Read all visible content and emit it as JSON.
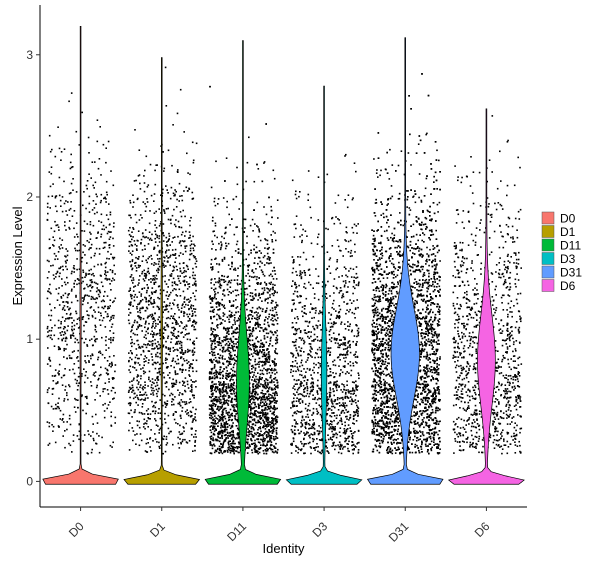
{
  "chart_data": {
    "type": "violin",
    "title": "",
    "xlabel": "Identity",
    "ylabel": "Expression Level",
    "ylim": [
      -0.18,
      3.35
    ],
    "yticks": [
      0,
      1,
      2,
      3
    ],
    "grid": false,
    "legend_position": "right",
    "jitter_points": true,
    "categories": [
      "D0",
      "D1",
      "D11",
      "D3",
      "D31",
      "D6"
    ],
    "series": [
      {
        "name": "D0",
        "color": "#F8766D",
        "max": 3.2,
        "zero_fraction": 0.97,
        "nonzero_median": 1.2,
        "point_count": 900
      },
      {
        "name": "D1",
        "color": "#B79F00",
        "max": 2.98,
        "zero_fraction": 0.95,
        "nonzero_median": 1.1,
        "point_count": 1500
      },
      {
        "name": "D11",
        "color": "#00BA38",
        "max": 3.1,
        "zero_fraction": 0.55,
        "nonzero_median": 0.7,
        "point_count": 3000
      },
      {
        "name": "D3",
        "color": "#00BFC4",
        "max": 2.78,
        "zero_fraction": 0.75,
        "nonzero_median": 0.75,
        "point_count": 1300
      },
      {
        "name": "D31",
        "color": "#619CFF",
        "max": 3.12,
        "zero_fraction": 0.35,
        "nonzero_median": 0.9,
        "point_count": 4200
      },
      {
        "name": "D6",
        "color": "#F564E3",
        "max": 2.62,
        "zero_fraction": 0.45,
        "nonzero_median": 0.85,
        "point_count": 1200
      }
    ]
  }
}
